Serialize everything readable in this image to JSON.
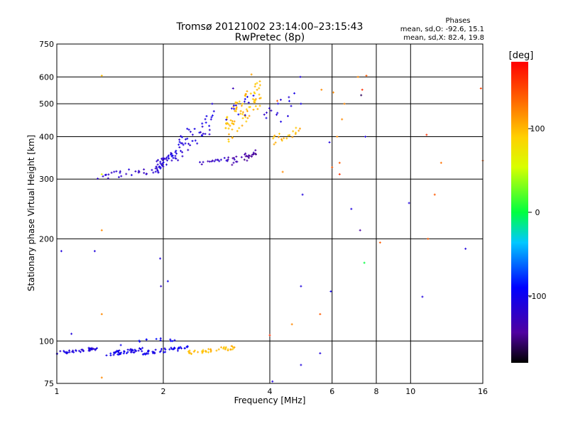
{
  "chart_data": {
    "type": "scatter",
    "title": "Tromsø 20121002 23:14:00–23:15:43",
    "subtitle": "RwPretec (8p)",
    "xlabel": "Frequency [MHz]",
    "ylabel": "Stationary phase Virtual Height [km]",
    "x_scale": "log",
    "y_scale": "log",
    "xlim": [
      1,
      16
    ],
    "ylim": [
      75,
      750
    ],
    "x_ticks": [
      1,
      2,
      4,
      6,
      8,
      10,
      16
    ],
    "x_tick_labels": [
      "1",
      "2",
      "4",
      "6",
      "8",
      "10",
      "16"
    ],
    "y_ticks": [
      75,
      100,
      200,
      300,
      400,
      500,
      600,
      750
    ],
    "y_tick_labels": [
      "75",
      "100",
      "200",
      "300",
      "400",
      "500",
      "600",
      "750"
    ],
    "grid": true,
    "phases_info": {
      "title": "Phases",
      "line_o": "mean, sd,O: -92.6, 15.1",
      "line_x": "mean, sd,X:  82.4, 19.8"
    },
    "colorbar": {
      "label": "[deg]",
      "range": [
        -180,
        180
      ],
      "ticks": [
        100,
        0,
        -100
      ],
      "tick_labels": [
        "100",
        "0",
        "-100"
      ]
    },
    "clusters": [
      {
        "phase": -110,
        "f": [
          1.0,
          1.3
        ],
        "h": [
          91,
          96
        ],
        "n": 40
      },
      {
        "phase": -105,
        "f": [
          1.38,
          1.75
        ],
        "h": [
          90,
          96
        ],
        "n": 45
      },
      {
        "phase": -100,
        "f": [
          1.75,
          2.35
        ],
        "h": [
          91,
          97
        ],
        "n": 45
      },
      {
        "phase": 100,
        "f": [
          2.35,
          3.2
        ],
        "h": [
          91,
          97
        ],
        "n": 40
      },
      {
        "phase": -95,
        "f": [
          1.5,
          2.3
        ],
        "h": [
          96,
          104
        ],
        "n": 12
      },
      {
        "phase": -120,
        "f": [
          1.3,
          2.0
        ],
        "h": [
          296,
          330
        ],
        "n": 35
      },
      {
        "phase": -110,
        "f": [
          1.9,
          2.2
        ],
        "h": [
          315,
          370
        ],
        "n": 40
      },
      {
        "phase": -110,
        "f": [
          2.2,
          2.8
        ],
        "h": [
          340,
          480
        ],
        "n": 45
      },
      {
        "phase": -125,
        "f": [
          2.5,
          3.2
        ],
        "h": [
          330,
          350
        ],
        "n": 20
      },
      {
        "phase": -140,
        "f": [
          3.1,
          3.7
        ],
        "h": [
          325,
          370
        ],
        "n": 25
      },
      {
        "phase": 100,
        "f": [
          3.0,
          3.8
        ],
        "h": [
          370,
          600
        ],
        "n": 80
      },
      {
        "phase": 100,
        "f": [
          4.0,
          4.9
        ],
        "h": [
          375,
          430
        ],
        "n": 20
      },
      {
        "phase": -110,
        "f": [
          3.8,
          4.9
        ],
        "h": [
          400,
          560
        ],
        "n": 15
      },
      {
        "phase": -105,
        "f": [
          3.0,
          3.6
        ],
        "h": [
          400,
          560
        ],
        "n": 12
      }
    ],
    "points": [
      {
        "f": 1.03,
        "h": 184,
        "phase": -110
      },
      {
        "f": 1.28,
        "h": 184,
        "phase": -110
      },
      {
        "f": 1.34,
        "h": 605,
        "phase": 100
      },
      {
        "f": 1.34,
        "h": 310,
        "phase": 60
      },
      {
        "f": 1.34,
        "h": 212,
        "phase": 120
      },
      {
        "f": 1.34,
        "h": 120,
        "phase": 120
      },
      {
        "f": 1.34,
        "h": 78,
        "phase": 120
      },
      {
        "f": 1.1,
        "h": 105,
        "phase": -110
      },
      {
        "f": 1.96,
        "h": 175,
        "phase": -110
      },
      {
        "f": 1.97,
        "h": 145,
        "phase": -120
      },
      {
        "f": 2.06,
        "h": 150,
        "phase": -100
      },
      {
        "f": 4.07,
        "h": 76,
        "phase": -110
      },
      {
        "f": 4.0,
        "h": 104,
        "phase": 160
      },
      {
        "f": 4.35,
        "h": 315,
        "phase": 120
      },
      {
        "f": 4.62,
        "h": 112,
        "phase": 120
      },
      {
        "f": 4.95,
        "h": 270,
        "phase": -110
      },
      {
        "f": 4.9,
        "h": 145,
        "phase": -110
      },
      {
        "f": 4.9,
        "h": 85,
        "phase": -110
      },
      {
        "f": 4.88,
        "h": 600,
        "phase": -110
      },
      {
        "f": 5.55,
        "h": 120,
        "phase": 140
      },
      {
        "f": 5.55,
        "h": 92,
        "phase": -110
      },
      {
        "f": 5.6,
        "h": 550,
        "phase": 120
      },
      {
        "f": 5.9,
        "h": 385,
        "phase": -110
      },
      {
        "f": 5.95,
        "h": 140,
        "phase": -100
      },
      {
        "f": 6.0,
        "h": 325,
        "phase": 140
      },
      {
        "f": 6.05,
        "h": 540,
        "phase": 120
      },
      {
        "f": 6.2,
        "h": 400,
        "phase": 120
      },
      {
        "f": 6.3,
        "h": 335,
        "phase": 140
      },
      {
        "f": 6.3,
        "h": 310,
        "phase": 160
      },
      {
        "f": 6.4,
        "h": 450,
        "phase": 120
      },
      {
        "f": 6.5,
        "h": 500,
        "phase": 120
      },
      {
        "f": 6.8,
        "h": 245,
        "phase": -110
      },
      {
        "f": 7.1,
        "h": 600,
        "phase": 120
      },
      {
        "f": 7.2,
        "h": 212,
        "phase": -140
      },
      {
        "f": 7.25,
        "h": 530,
        "phase": -160
      },
      {
        "f": 7.3,
        "h": 550,
        "phase": 160
      },
      {
        "f": 7.45,
        "h": 400,
        "phase": -110
      },
      {
        "f": 7.5,
        "h": 605,
        "phase": 140
      },
      {
        "f": 7.4,
        "h": 170,
        "phase": 0
      },
      {
        "f": 8.2,
        "h": 195,
        "phase": 140
      },
      {
        "f": 9.9,
        "h": 255,
        "phase": -110
      },
      {
        "f": 10.8,
        "h": 135,
        "phase": -110
      },
      {
        "f": 11.1,
        "h": 405,
        "phase": 160
      },
      {
        "f": 11.2,
        "h": 200,
        "phase": 140
      },
      {
        "f": 11.7,
        "h": 270,
        "phase": 140
      },
      {
        "f": 12.2,
        "h": 335,
        "phase": 130
      },
      {
        "f": 14.3,
        "h": 187,
        "phase": -110
      },
      {
        "f": 15.8,
        "h": 555,
        "phase": 150
      },
      {
        "f": 16.0,
        "h": 340,
        "phase": 140
      },
      {
        "f": 2.75,
        "h": 500,
        "phase": -110
      },
      {
        "f": 3.15,
        "h": 555,
        "phase": -130
      },
      {
        "f": 3.55,
        "h": 610,
        "phase": 110
      },
      {
        "f": 4.5,
        "h": 460,
        "phase": -110
      },
      {
        "f": 4.2,
        "h": 510,
        "phase": 140
      }
    ]
  }
}
